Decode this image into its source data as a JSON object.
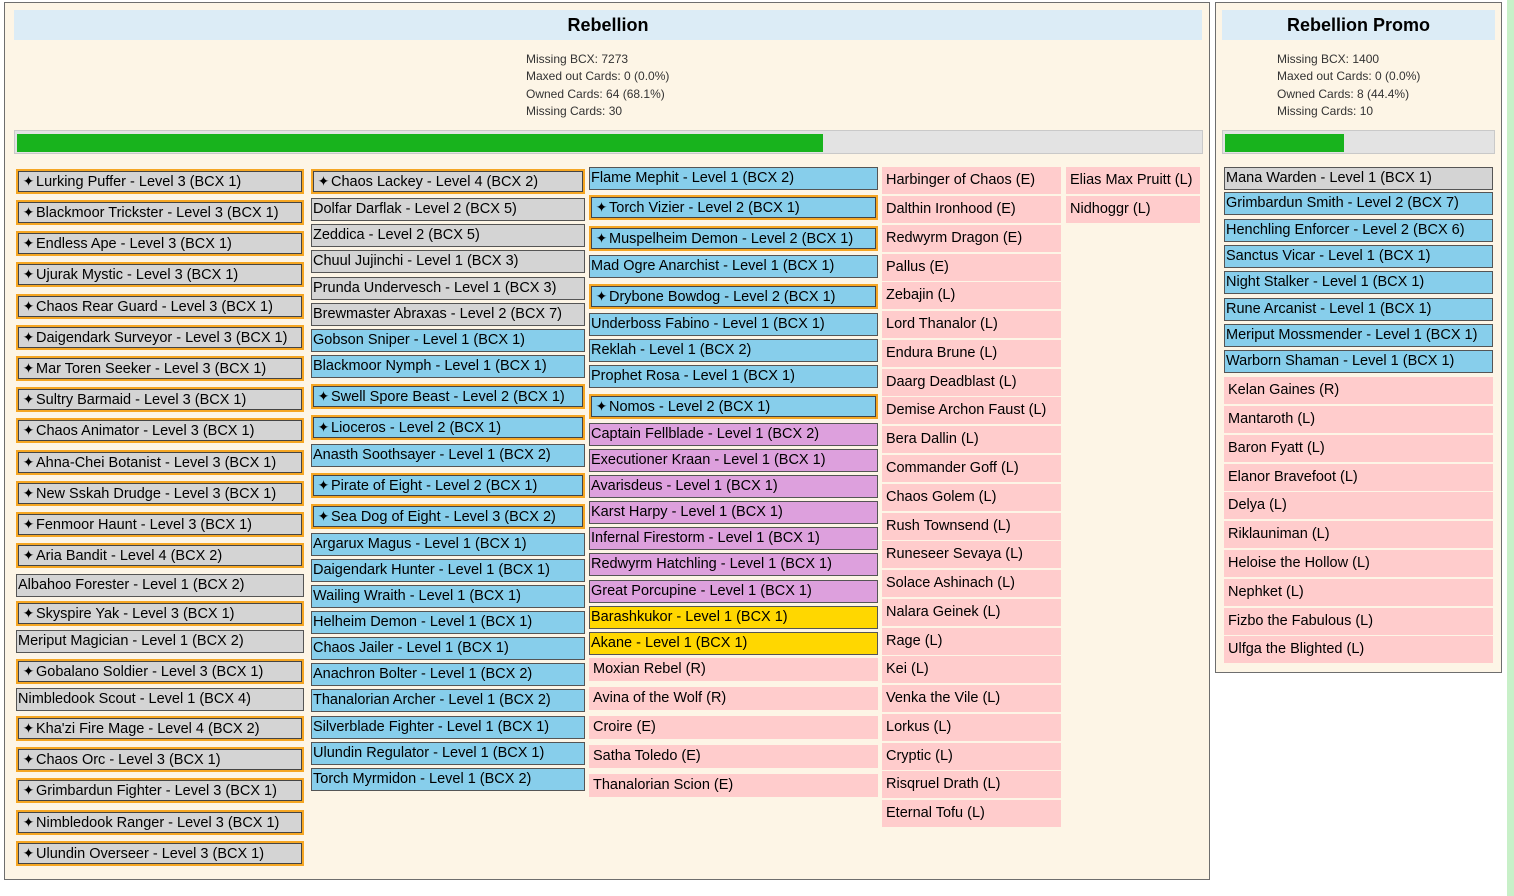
{
  "sets": [
    {
      "title": "Rebellion",
      "stats": {
        "missing_bcx": "Missing BCX: 7273",
        "maxed_out": "Maxed out Cards: 0 (0.0%)",
        "owned": "Owned Cards: 64 (68.1%)",
        "missing_cards": "Missing Cards: 30"
      },
      "progress_fraction": 0.681,
      "columns": [
        [
          {
            "label": "Lurking Puffer - Level 3 (BCX 1)",
            "rarity": "common",
            "owned": true,
            "icon": "pin-icon"
          },
          {
            "label": "Blackmoor Trickster - Level 3 (BCX 1)",
            "rarity": "common",
            "owned": true,
            "icon": "pin-icon"
          },
          {
            "label": "Endless Ape - Level 3 (BCX 1)",
            "rarity": "common",
            "owned": true,
            "icon": "pin-icon"
          },
          {
            "label": "Ujurak Mystic - Level 3 (BCX 1)",
            "rarity": "common",
            "owned": true,
            "icon": "pin-icon"
          },
          {
            "label": "Chaos Rear Guard - Level 3 (BCX 1)",
            "rarity": "common",
            "owned": true,
            "icon": "pin-icon"
          },
          {
            "label": "Daigendark Surveyor - Level 3 (BCX 1)",
            "rarity": "common",
            "owned": true,
            "icon": "pin-icon"
          },
          {
            "label": "Mar Toren Seeker - Level 3 (BCX 1)",
            "rarity": "common",
            "owned": true,
            "icon": "pin-icon"
          },
          {
            "label": "Sultry Barmaid - Level 3 (BCX 1)",
            "rarity": "common",
            "owned": true,
            "icon": "pin-icon"
          },
          {
            "label": "Chaos Animator - Level 3 (BCX 1)",
            "rarity": "common",
            "owned": true,
            "icon": "pin-icon"
          },
          {
            "label": "Ahna-Chei Botanist - Level 3 (BCX 1)",
            "rarity": "common",
            "owned": true,
            "icon": "pin-icon"
          },
          {
            "label": "New Sskah Drudge - Level 3 (BCX 1)",
            "rarity": "common",
            "owned": true,
            "icon": "pin-icon"
          },
          {
            "label": "Fenmoor Haunt - Level 3 (BCX 1)",
            "rarity": "common",
            "owned": true,
            "icon": "pin-icon"
          },
          {
            "label": "Aria Bandit - Level 4 (BCX 2)",
            "rarity": "common",
            "owned": true,
            "icon": "pin-icon"
          },
          {
            "label": "Albahoo Forester - Level 1 (BCX 2)",
            "rarity": "common",
            "owned": false,
            "icon": ""
          },
          {
            "label": "Skyspire Yak - Level 3 (BCX 1)",
            "rarity": "common",
            "owned": true,
            "icon": "pin-icon"
          },
          {
            "label": "Meriput Magician - Level 1 (BCX 2)",
            "rarity": "common",
            "owned": false,
            "icon": ""
          },
          {
            "label": "Gobalano Soldier - Level 3 (BCX 1)",
            "rarity": "common",
            "owned": true,
            "icon": "pin-icon"
          },
          {
            "label": "Nimbledook Scout - Level 1 (BCX 4)",
            "rarity": "common",
            "owned": false,
            "icon": ""
          },
          {
            "label": "Kha'zi Fire Mage - Level 4 (BCX 2)",
            "rarity": "common",
            "owned": true,
            "icon": "pin-icon"
          },
          {
            "label": "Chaos Orc - Level 3 (BCX 1)",
            "rarity": "common",
            "owned": true,
            "icon": "pin-icon"
          },
          {
            "label": "Grimbardun Fighter - Level 3 (BCX 1)",
            "rarity": "common",
            "owned": true,
            "icon": "pin-icon"
          },
          {
            "label": "Nimbledook Ranger - Level 3 (BCX 1)",
            "rarity": "common",
            "owned": true,
            "icon": "pin-icon"
          },
          {
            "label": "Ulundin Overseer - Level 3 (BCX 1)",
            "rarity": "common",
            "owned": true,
            "icon": "pin-icon"
          }
        ],
        [
          {
            "label": "Chaos Lackey - Level 4 (BCX 2)",
            "rarity": "common",
            "owned": true,
            "icon": "pin-icon"
          },
          {
            "label": "Dolfar Darflak - Level 2 (BCX 5)",
            "rarity": "common",
            "owned": false,
            "icon": ""
          },
          {
            "label": "Zeddica - Level 2 (BCX 5)",
            "rarity": "common",
            "owned": false,
            "icon": ""
          },
          {
            "label": "Chuul Jujinchi - Level 1 (BCX 3)",
            "rarity": "common",
            "owned": false,
            "icon": ""
          },
          {
            "label": "Prunda Undervesch - Level 1 (BCX 3)",
            "rarity": "common",
            "owned": false,
            "icon": ""
          },
          {
            "label": "Brewmaster Abraxas - Level 2 (BCX 7)",
            "rarity": "common",
            "owned": false,
            "icon": ""
          },
          {
            "label": "Gobson Sniper - Level 1 (BCX 1)",
            "rarity": "rare",
            "owned": false,
            "icon": ""
          },
          {
            "label": "Blackmoor Nymph - Level 1 (BCX 1)",
            "rarity": "rare",
            "owned": false,
            "icon": ""
          },
          {
            "label": "Swell Spore Beast - Level 2 (BCX 1)",
            "rarity": "rare",
            "owned": true,
            "icon": "pin-icon"
          },
          {
            "label": "Lioceros - Level 2 (BCX 1)",
            "rarity": "rare",
            "owned": true,
            "icon": "pin-icon"
          },
          {
            "label": "Anasth Soothsayer - Level 1 (BCX 2)",
            "rarity": "rare",
            "owned": false,
            "icon": ""
          },
          {
            "label": "Pirate of Eight - Level 2 (BCX 1)",
            "rarity": "rare",
            "owned": true,
            "icon": "pin-icon"
          },
          {
            "label": "Sea Dog of Eight - Level 3 (BCX 2)",
            "rarity": "rare",
            "owned": true,
            "icon": "pin-icon"
          },
          {
            "label": "Argarux Magus - Level 1 (BCX 1)",
            "rarity": "rare",
            "owned": false,
            "icon": ""
          },
          {
            "label": "Daigendark Hunter - Level 1 (BCX 1)",
            "rarity": "rare",
            "owned": false,
            "icon": ""
          },
          {
            "label": "Wailing Wraith - Level 1 (BCX 1)",
            "rarity": "rare",
            "owned": false,
            "icon": ""
          },
          {
            "label": "Helheim Demon - Level 1 (BCX 1)",
            "rarity": "rare",
            "owned": false,
            "icon": ""
          },
          {
            "label": "Chaos Jailer - Level 1 (BCX 1)",
            "rarity": "rare",
            "owned": false,
            "icon": ""
          },
          {
            "label": "Anachron Bolter - Level 1 (BCX 2)",
            "rarity": "rare",
            "owned": false,
            "icon": ""
          },
          {
            "label": "Thanalorian Archer - Level 1 (BCX 2)",
            "rarity": "rare",
            "owned": false,
            "icon": ""
          },
          {
            "label": "Silverblade Fighter - Level 1 (BCX 1)",
            "rarity": "rare",
            "owned": false,
            "icon": ""
          },
          {
            "label": "Ulundin Regulator - Level 1 (BCX 1)",
            "rarity": "rare",
            "owned": false,
            "icon": ""
          },
          {
            "label": "Torch Myrmidon - Level 1 (BCX 2)",
            "rarity": "rare",
            "owned": false,
            "icon": ""
          }
        ],
        [
          {
            "label": "Flame Mephit - Level 1 (BCX 2)",
            "rarity": "rare",
            "owned": false,
            "icon": ""
          },
          {
            "label": "Torch Vizier - Level 2 (BCX 1)",
            "rarity": "rare",
            "owned": true,
            "icon": "pin-icon"
          },
          {
            "label": "Muspelheim Demon - Level 2 (BCX 1)",
            "rarity": "rare",
            "owned": true,
            "icon": "pin-icon"
          },
          {
            "label": "Mad Ogre Anarchist - Level 1 (BCX 1)",
            "rarity": "rare",
            "owned": false,
            "icon": ""
          },
          {
            "label": "Drybone Bowdog - Level 2 (BCX 1)",
            "rarity": "rare",
            "owned": true,
            "icon": "pin-icon"
          },
          {
            "label": "Underboss Fabino - Level 1 (BCX 1)",
            "rarity": "rare",
            "owned": false,
            "icon": ""
          },
          {
            "label": "Reklah - Level 1 (BCX 2)",
            "rarity": "rare",
            "owned": false,
            "icon": ""
          },
          {
            "label": "Prophet Rosa - Level 1 (BCX 1)",
            "rarity": "rare",
            "owned": false,
            "icon": ""
          },
          {
            "label": "Nomos - Level 2 (BCX 1)",
            "rarity": "rare",
            "owned": true,
            "icon": "pin-icon"
          },
          {
            "label": "Captain Fellblade - Level 1 (BCX 2)",
            "rarity": "epic",
            "owned": false,
            "icon": ""
          },
          {
            "label": "Executioner Kraan - Level 1 (BCX 1)",
            "rarity": "epic",
            "owned": false,
            "icon": ""
          },
          {
            "label": "Avarisdeus - Level 1 (BCX 1)",
            "rarity": "epic",
            "owned": false,
            "icon": ""
          },
          {
            "label": "Karst Harpy - Level 1 (BCX 1)",
            "rarity": "epic",
            "owned": false,
            "icon": ""
          },
          {
            "label": "Infernal Firestorm - Level 1 (BCX 1)",
            "rarity": "epic",
            "owned": false,
            "icon": ""
          },
          {
            "label": "Redwyrm Hatchling - Level 1 (BCX 1)",
            "rarity": "epic",
            "owned": false,
            "icon": ""
          },
          {
            "label": "Great Porcupine - Level 1 (BCX 1)",
            "rarity": "epic",
            "owned": false,
            "icon": ""
          },
          {
            "label": "Barashkukor - Level 1 (BCX 1)",
            "rarity": "legendary",
            "owned": false,
            "icon": ""
          },
          {
            "label": "Akane - Level 1 (BCX 1)",
            "rarity": "legendary",
            "owned": false,
            "icon": ""
          },
          {
            "label": "Moxian Rebel (R)",
            "rarity": "missing",
            "owned": false,
            "icon": ""
          },
          {
            "label": "Avina of the Wolf (R)",
            "rarity": "missing",
            "owned": false,
            "icon": ""
          },
          {
            "label": "Croire (E)",
            "rarity": "missing",
            "owned": false,
            "icon": ""
          },
          {
            "label": "Satha Toledo (E)",
            "rarity": "missing",
            "owned": false,
            "icon": ""
          },
          {
            "label": "Thanalorian Scion (E)",
            "rarity": "missing",
            "owned": false,
            "icon": ""
          }
        ],
        [
          {
            "label": "Harbinger of Chaos (E)",
            "rarity": "missing",
            "owned": false,
            "icon": ""
          },
          {
            "label": "Dalthin Ironhood (E)",
            "rarity": "missing",
            "owned": false,
            "icon": ""
          },
          {
            "label": "Redwyrm Dragon (E)",
            "rarity": "missing",
            "owned": false,
            "icon": ""
          },
          {
            "label": "Pallus (E)",
            "rarity": "missing",
            "owned": false,
            "icon": ""
          },
          {
            "label": "Zebajin (L)",
            "rarity": "missing",
            "owned": false,
            "icon": ""
          },
          {
            "label": "Lord Thanalor (L)",
            "rarity": "missing",
            "owned": false,
            "icon": ""
          },
          {
            "label": "Endura Brune (L)",
            "rarity": "missing",
            "owned": false,
            "icon": ""
          },
          {
            "label": "Daarg Deadblast (L)",
            "rarity": "missing",
            "owned": false,
            "icon": ""
          },
          {
            "label": "Demise Archon Faust (L)",
            "rarity": "missing",
            "owned": false,
            "icon": ""
          },
          {
            "label": "Bera Dallin (L)",
            "rarity": "missing",
            "owned": false,
            "icon": ""
          },
          {
            "label": "Commander Goff (L)",
            "rarity": "missing",
            "owned": false,
            "icon": ""
          },
          {
            "label": "Chaos Golem (L)",
            "rarity": "missing",
            "owned": false,
            "icon": ""
          },
          {
            "label": "Rush Townsend (L)",
            "rarity": "missing",
            "owned": false,
            "icon": ""
          },
          {
            "label": "Runeseer Sevaya (L)",
            "rarity": "missing",
            "owned": false,
            "icon": ""
          },
          {
            "label": "Solace Ashinach (L)",
            "rarity": "missing",
            "owned": false,
            "icon": ""
          },
          {
            "label": "Nalara Geinek (L)",
            "rarity": "missing",
            "owned": false,
            "icon": ""
          },
          {
            "label": "Rage (L)",
            "rarity": "missing",
            "owned": false,
            "icon": ""
          },
          {
            "label": "Kei (L)",
            "rarity": "missing",
            "owned": false,
            "icon": ""
          },
          {
            "label": "Venka the Vile (L)",
            "rarity": "missing",
            "owned": false,
            "icon": ""
          },
          {
            "label": "Lorkus (L)",
            "rarity": "missing",
            "owned": false,
            "icon": ""
          },
          {
            "label": "Cryptic (L)",
            "rarity": "missing",
            "owned": false,
            "icon": ""
          },
          {
            "label": "Risqruel Drath (L)",
            "rarity": "missing",
            "owned": false,
            "icon": ""
          },
          {
            "label": "Eternal Tofu (L)",
            "rarity": "missing",
            "owned": false,
            "icon": ""
          }
        ],
        [
          {
            "label": "Elias Max Pruitt (L)",
            "rarity": "missing",
            "owned": false,
            "icon": ""
          },
          {
            "label": "Nidhoggr (L)",
            "rarity": "missing",
            "owned": false,
            "icon": ""
          }
        ]
      ]
    },
    {
      "title": "Rebellion Promo",
      "stats": {
        "missing_bcx": "Missing BCX: 1400",
        "maxed_out": "Maxed out Cards: 0 (0.0%)",
        "owned": "Owned Cards: 8 (44.4%)",
        "missing_cards": "Missing Cards: 10"
      },
      "progress_fraction": 0.444,
      "columns": [
        [
          {
            "label": "Mana Warden - Level 1 (BCX 1)",
            "rarity": "common",
            "owned": false,
            "icon": ""
          },
          {
            "label": "Grimbardun Smith - Level 2 (BCX 7)",
            "rarity": "rare",
            "owned": false,
            "icon": ""
          },
          {
            "label": "Henchling Enforcer - Level 2 (BCX 6)",
            "rarity": "rare",
            "owned": false,
            "icon": ""
          },
          {
            "label": "Sanctus Vicar - Level 1 (BCX 1)",
            "rarity": "rare",
            "owned": false,
            "icon": ""
          },
          {
            "label": "Night Stalker - Level 1 (BCX 1)",
            "rarity": "rare",
            "owned": false,
            "icon": ""
          },
          {
            "label": "Rune Arcanist - Level 1 (BCX 1)",
            "rarity": "rare",
            "owned": false,
            "icon": ""
          },
          {
            "label": "Meriput Mossmender - Level 1 (BCX 1)",
            "rarity": "rare",
            "owned": false,
            "icon": ""
          },
          {
            "label": "Warborn Shaman - Level 1 (BCX 1)",
            "rarity": "rare",
            "owned": false,
            "icon": ""
          },
          {
            "label": "Kelan Gaines (R)",
            "rarity": "missing",
            "owned": false,
            "icon": ""
          },
          {
            "label": "Mantaroth (L)",
            "rarity": "missing",
            "owned": false,
            "icon": ""
          },
          {
            "label": "Baron Fyatt (L)",
            "rarity": "missing",
            "owned": false,
            "icon": ""
          },
          {
            "label": "Elanor Bravefoot (L)",
            "rarity": "missing",
            "owned": false,
            "icon": ""
          },
          {
            "label": "Delya (L)",
            "rarity": "missing",
            "owned": false,
            "icon": ""
          },
          {
            "label": "Riklauniman (L)",
            "rarity": "missing",
            "owned": false,
            "icon": ""
          },
          {
            "label": "Heloise the Hollow (L)",
            "rarity": "missing",
            "owned": false,
            "icon": ""
          },
          {
            "label": "Nephket (L)",
            "rarity": "missing",
            "owned": false,
            "icon": ""
          },
          {
            "label": "Fizbo the Fabulous (L)",
            "rarity": "missing",
            "owned": false,
            "icon": ""
          },
          {
            "label": "Ulfga the Blighted (L)",
            "rarity": "missing",
            "owned": false,
            "icon": ""
          }
        ]
      ]
    }
  ]
}
